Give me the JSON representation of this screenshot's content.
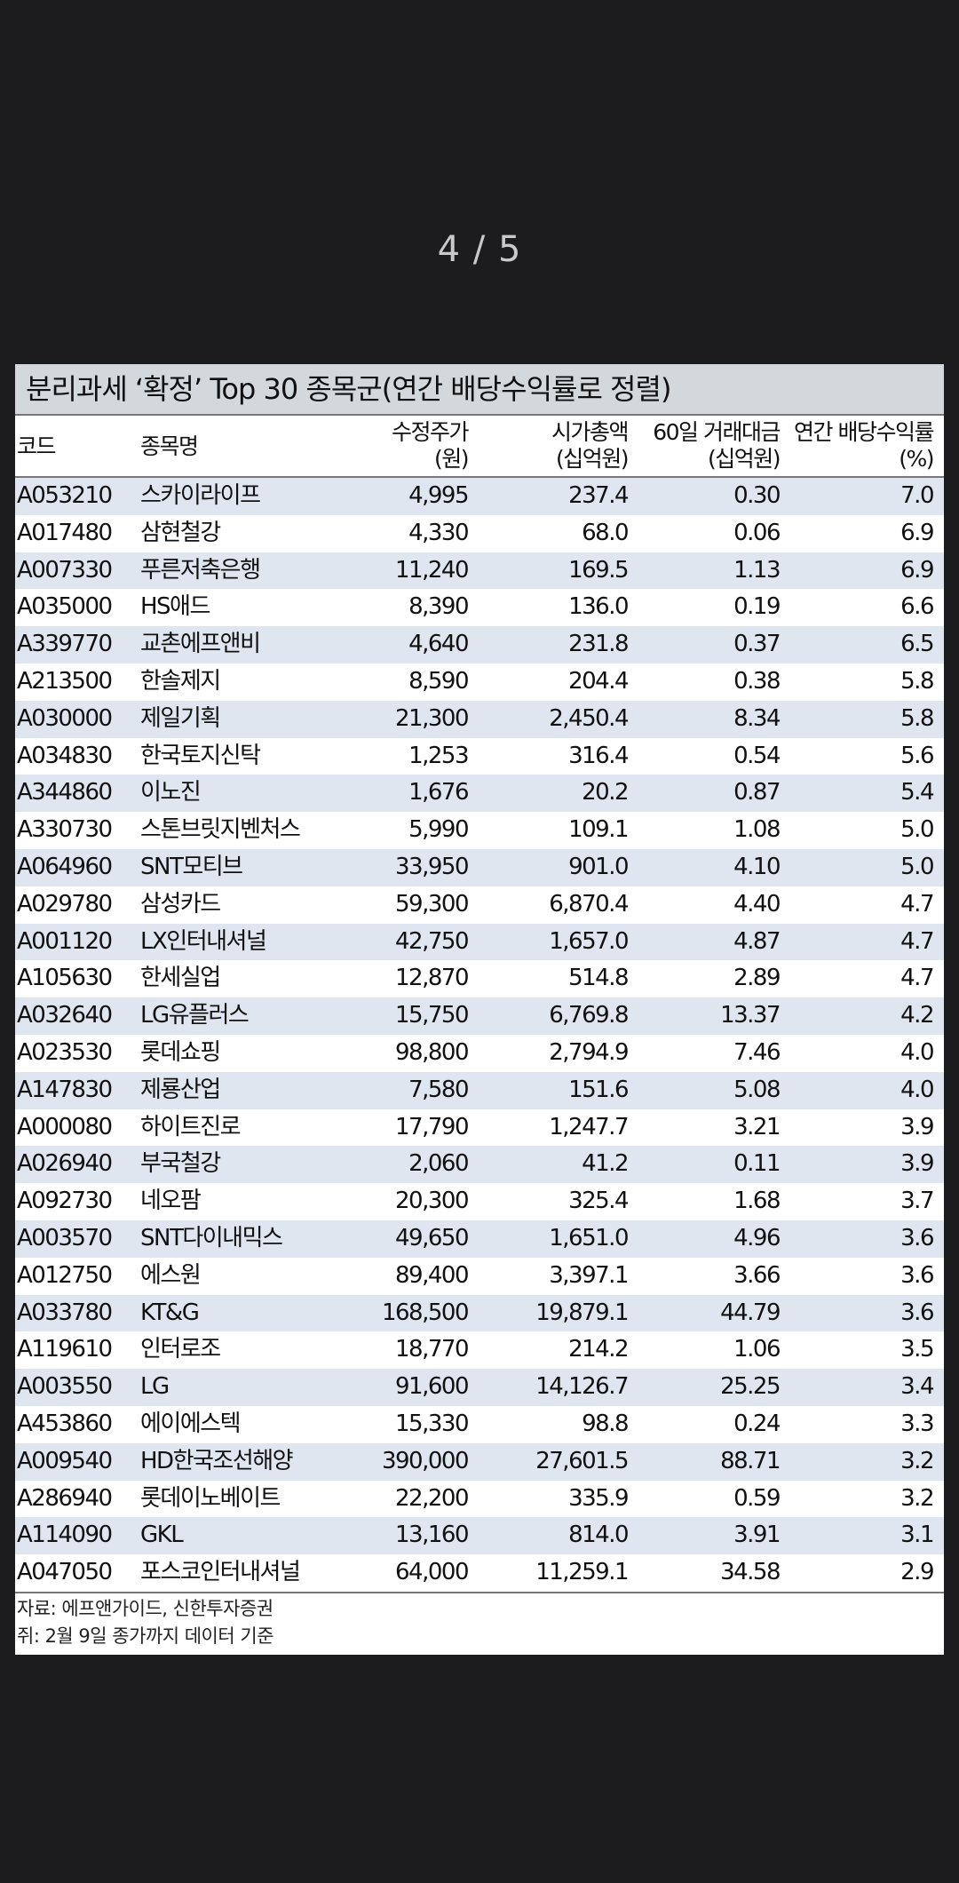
{
  "viewer": {
    "page_counter": "4 / 5"
  },
  "document": {
    "title": "분리과세 ‘확정’ Top 30 종목군(연간 배당수익률로 정렬)",
    "headers": {
      "code": "코드",
      "name": "종목명",
      "price_line1": "수정주가",
      "price_line2": "(원)",
      "cap_line1": "시가총액",
      "cap_line2": "(십억원)",
      "vol_line1": "60일 거래대금",
      "vol_line2": "(십억원)",
      "yield_line1": "연간 배당수익률",
      "yield_line2": "(%)"
    },
    "rows": [
      {
        "code": "A053210",
        "name": "스카이라이프",
        "price": "4,995",
        "cap": "237.4",
        "vol": "0.30",
        "yield": "7.0"
      },
      {
        "code": "A017480",
        "name": "삼현철강",
        "price": "4,330",
        "cap": "68.0",
        "vol": "0.06",
        "yield": "6.9"
      },
      {
        "code": "A007330",
        "name": "푸른저축은행",
        "price": "11,240",
        "cap": "169.5",
        "vol": "1.13",
        "yield": "6.9"
      },
      {
        "code": "A035000",
        "name": "HS애드",
        "price": "8,390",
        "cap": "136.0",
        "vol": "0.19",
        "yield": "6.6"
      },
      {
        "code": "A339770",
        "name": "교촌에프앤비",
        "price": "4,640",
        "cap": "231.8",
        "vol": "0.37",
        "yield": "6.5"
      },
      {
        "code": "A213500",
        "name": "한솔제지",
        "price": "8,590",
        "cap": "204.4",
        "vol": "0.38",
        "yield": "5.8"
      },
      {
        "code": "A030000",
        "name": "제일기획",
        "price": "21,300",
        "cap": "2,450.4",
        "vol": "8.34",
        "yield": "5.8"
      },
      {
        "code": "A034830",
        "name": "한국토지신탁",
        "price": "1,253",
        "cap": "316.4",
        "vol": "0.54",
        "yield": "5.6"
      },
      {
        "code": "A344860",
        "name": "이노진",
        "price": "1,676",
        "cap": "20.2",
        "vol": "0.87",
        "yield": "5.4"
      },
      {
        "code": "A330730",
        "name": "스톤브릿지벤처스",
        "price": "5,990",
        "cap": "109.1",
        "vol": "1.08",
        "yield": "5.0"
      },
      {
        "code": "A064960",
        "name": "SNT모티브",
        "price": "33,950",
        "cap": "901.0",
        "vol": "4.10",
        "yield": "5.0"
      },
      {
        "code": "A029780",
        "name": "삼성카드",
        "price": "59,300",
        "cap": "6,870.4",
        "vol": "4.40",
        "yield": "4.7"
      },
      {
        "code": "A001120",
        "name": "LX인터내셔널",
        "price": "42,750",
        "cap": "1,657.0",
        "vol": "4.87",
        "yield": "4.7"
      },
      {
        "code": "A105630",
        "name": "한세실업",
        "price": "12,870",
        "cap": "514.8",
        "vol": "2.89",
        "yield": "4.7"
      },
      {
        "code": "A032640",
        "name": "LG유플러스",
        "price": "15,750",
        "cap": "6,769.8",
        "vol": "13.37",
        "yield": "4.2"
      },
      {
        "code": "A023530",
        "name": "롯데쇼핑",
        "price": "98,800",
        "cap": "2,794.9",
        "vol": "7.46",
        "yield": "4.0"
      },
      {
        "code": "A147830",
        "name": "제룡산업",
        "price": "7,580",
        "cap": "151.6",
        "vol": "5.08",
        "yield": "4.0"
      },
      {
        "code": "A000080",
        "name": "하이트진로",
        "price": "17,790",
        "cap": "1,247.7",
        "vol": "3.21",
        "yield": "3.9"
      },
      {
        "code": "A026940",
        "name": "부국철강",
        "price": "2,060",
        "cap": "41.2",
        "vol": "0.11",
        "yield": "3.9"
      },
      {
        "code": "A092730",
        "name": "네오팜",
        "price": "20,300",
        "cap": "325.4",
        "vol": "1.68",
        "yield": "3.7"
      },
      {
        "code": "A003570",
        "name": "SNT다이내믹스",
        "price": "49,650",
        "cap": "1,651.0",
        "vol": "4.96",
        "yield": "3.6"
      },
      {
        "code": "A012750",
        "name": "에스원",
        "price": "89,400",
        "cap": "3,397.1",
        "vol": "3.66",
        "yield": "3.6"
      },
      {
        "code": "A033780",
        "name": "KT&G",
        "price": "168,500",
        "cap": "19,879.1",
        "vol": "44.79",
        "yield": "3.6"
      },
      {
        "code": "A119610",
        "name": "인터로조",
        "price": "18,770",
        "cap": "214.2",
        "vol": "1.06",
        "yield": "3.5"
      },
      {
        "code": "A003550",
        "name": "LG",
        "price": "91,600",
        "cap": "14,126.7",
        "vol": "25.25",
        "yield": "3.4"
      },
      {
        "code": "A453860",
        "name": "에이에스텍",
        "price": "15,330",
        "cap": "98.8",
        "vol": "0.24",
        "yield": "3.3"
      },
      {
        "code": "A009540",
        "name": "HD한국조선해양",
        "price": "390,000",
        "cap": "27,601.5",
        "vol": "88.71",
        "yield": "3.2"
      },
      {
        "code": "A286940",
        "name": "롯데이노베이트",
        "price": "22,200",
        "cap": "335.9",
        "vol": "0.59",
        "yield": "3.2"
      },
      {
        "code": "A114090",
        "name": "GKL",
        "price": "13,160",
        "cap": "814.0",
        "vol": "3.91",
        "yield": "3.1"
      },
      {
        "code": "A047050",
        "name": "포스코인터내셔널",
        "price": "64,000",
        "cap": "11,259.1",
        "vol": "34.58",
        "yield": "2.9"
      }
    ],
    "source_line1": "자료: 에프앤가이드, 신한투자증권",
    "source_line2": "쥐: 2월 9일 종가까지 데이터 기준"
  }
}
